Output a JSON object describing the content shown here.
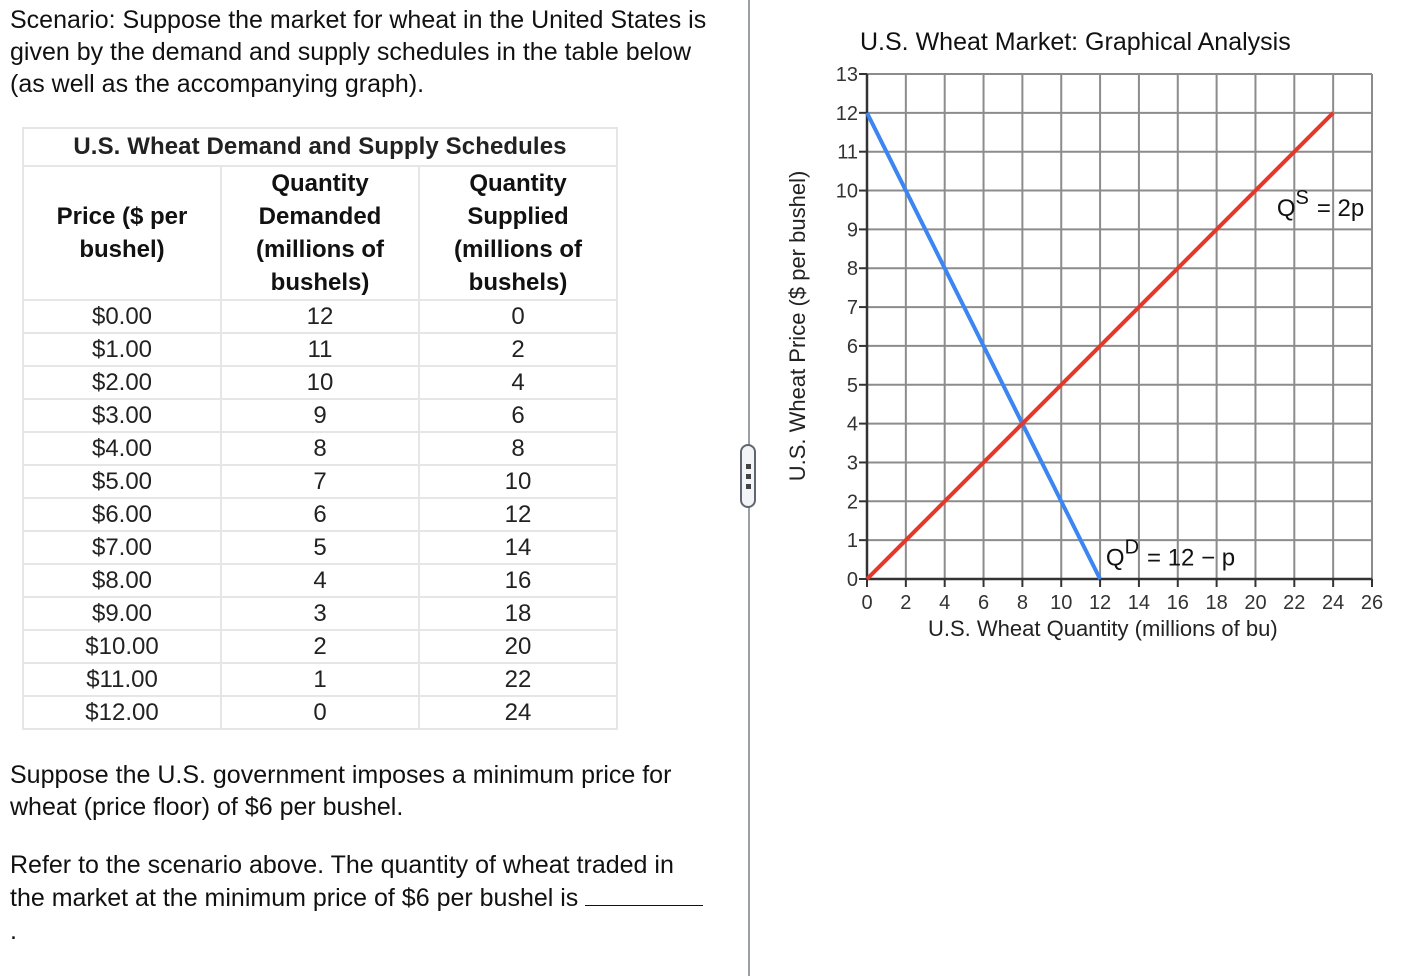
{
  "scenario_text": "Scenario: Suppose the market for wheat in the United States is given by the demand and supply schedules in the table below (as well as the accompanying graph).",
  "schedule_table": {
    "caption": "U.S. Wheat Demand and Supply Schedules",
    "headers": [
      [
        "Price ($ per",
        "bushel)"
      ],
      [
        "Quantity",
        "Demanded",
        "(millions of",
        "bushels)"
      ],
      [
        "Quantity",
        "Supplied",
        "(millions of",
        "bushels)"
      ]
    ],
    "rows": [
      [
        "$0.00",
        "12",
        "0"
      ],
      [
        "$1.00",
        "11",
        "2"
      ],
      [
        "$2.00",
        "10",
        "4"
      ],
      [
        "$3.00",
        "9",
        "6"
      ],
      [
        "$4.00",
        "8",
        "8"
      ],
      [
        "$5.00",
        "7",
        "10"
      ],
      [
        "$6.00",
        "6",
        "12"
      ],
      [
        "$7.00",
        "5",
        "14"
      ],
      [
        "$8.00",
        "4",
        "16"
      ],
      [
        "$9.00",
        "3",
        "18"
      ],
      [
        "$10.00",
        "2",
        "20"
      ],
      [
        "$11.00",
        "1",
        "22"
      ],
      [
        "$12.00",
        "0",
        "24"
      ]
    ]
  },
  "question": {
    "line1": "Suppose the U.S. government imposes a minimum price for wheat (price floor) of $6 per bushel.",
    "line2_prefix": "Refer to the scenario above. The quantity of wheat traded in the market at the minimum price of $6 per bushel is",
    "line2_suffix": "."
  },
  "divider": {
    "handle_icon": "drag-handle-icon"
  },
  "chart_data": {
    "type": "line",
    "title": "U.S. Wheat Market: Graphical Analysis",
    "xlabel": "U.S. Wheat Quantity (millions of bu)",
    "ylabel": "U.S. Wheat Price ($ per bushel)",
    "xlim": [
      0,
      26
    ],
    "ylim": [
      0,
      13
    ],
    "x_ticks": [
      0,
      2,
      4,
      6,
      8,
      10,
      12,
      14,
      16,
      18,
      20,
      22,
      24,
      26
    ],
    "y_ticks": [
      0,
      1,
      2,
      3,
      4,
      5,
      6,
      7,
      8,
      9,
      10,
      11,
      12,
      13
    ],
    "grid": true,
    "series": [
      {
        "name": "Demand",
        "label": "Q",
        "label_sup": "D",
        "label_rest": "=  12 − p",
        "color": "#3b86f0",
        "points": [
          [
            0,
            12
          ],
          [
            12,
            0
          ]
        ]
      },
      {
        "name": "Supply",
        "label": "Q",
        "label_sup": "S",
        "label_rest": "=  2p",
        "color": "#e8372a",
        "points": [
          [
            0,
            0
          ],
          [
            24,
            12
          ]
        ]
      }
    ],
    "equilibrium": {
      "quantity": 8,
      "price": 4
    }
  }
}
